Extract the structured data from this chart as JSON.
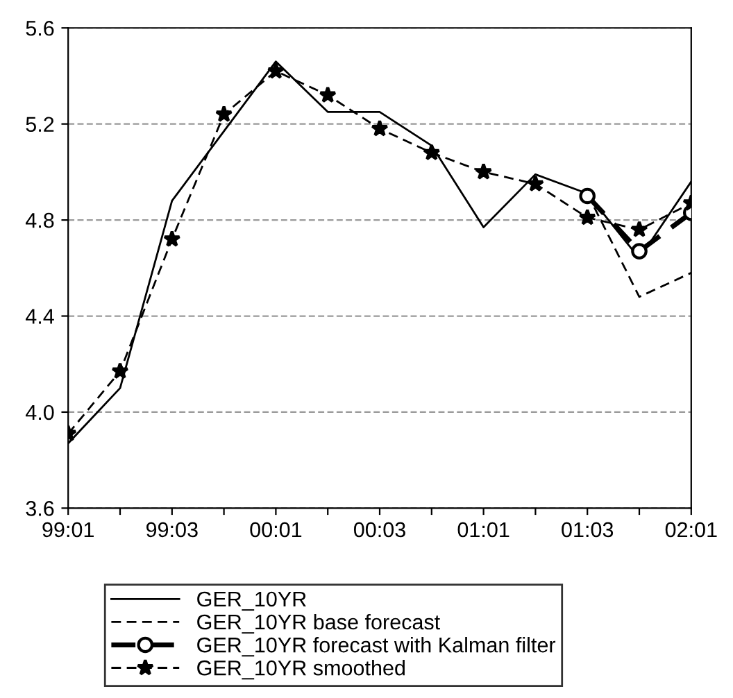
{
  "chart_data": {
    "type": "line",
    "categories": [
      "99:01",
      null,
      "99:03",
      null,
      "00:01",
      null,
      "00:03",
      null,
      "01:01",
      null,
      "01:03",
      null,
      "02:01"
    ],
    "series": [
      {
        "name": "GER_10YR",
        "color": "#000000",
        "line_style": "solid",
        "marker": "none",
        "values": [
          3.87,
          4.1,
          4.88,
          5.17,
          5.46,
          5.25,
          5.25,
          5.11,
          4.77,
          4.99,
          4.91,
          4.64,
          4.96
        ]
      },
      {
        "name": "GER_10YR base forecast",
        "color": "#000000",
        "line_style": "dashed",
        "marker": "none",
        "values": [
          null,
          null,
          null,
          null,
          null,
          null,
          null,
          null,
          null,
          null,
          4.91,
          4.48,
          4.58
        ]
      },
      {
        "name": "GER_10YR forecast with Kalman filter",
        "color": "#000000",
        "line_style": "dashed",
        "marker": "circle",
        "values": [
          null,
          null,
          null,
          null,
          null,
          null,
          null,
          null,
          null,
          null,
          4.9,
          4.67,
          4.83
        ]
      },
      {
        "name": "GER_10YR smoothed",
        "color": "#000000",
        "line_style": "dashed",
        "marker": "star",
        "values": [
          3.91,
          4.17,
          4.72,
          5.24,
          5.42,
          5.32,
          5.18,
          5.08,
          5.0,
          4.95,
          4.81,
          4.76,
          4.87
        ]
      }
    ],
    "ylim": [
      3.6,
      5.6
    ],
    "yticks": [
      3.6,
      {
        "value": 4.0,
        "label": "4.0"
      },
      4.4,
      4.8,
      5.2,
      5.6
    ],
    "grid": "y",
    "legend": "bottom"
  }
}
